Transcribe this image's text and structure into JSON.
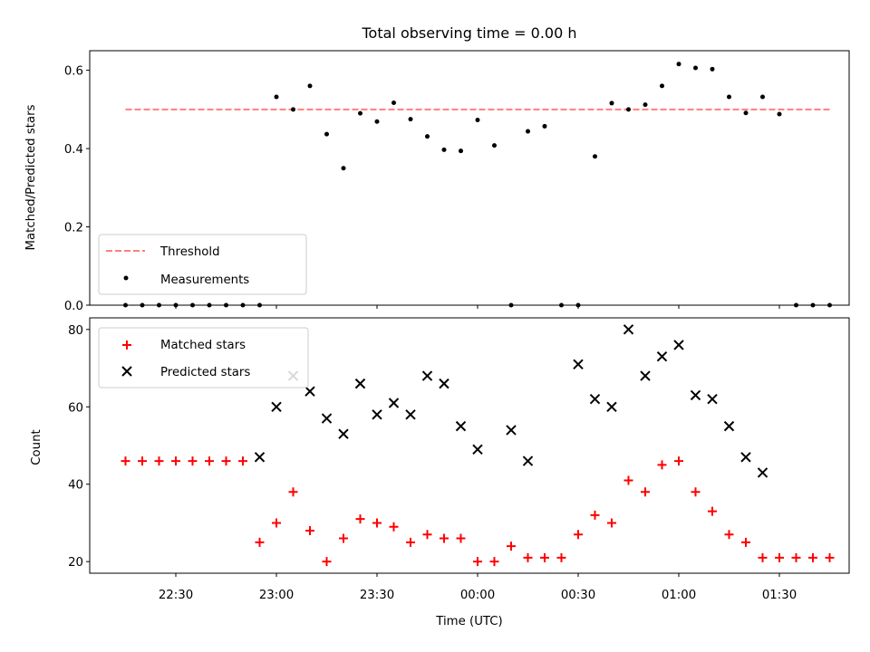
{
  "colors": {
    "threshold": "#ff7f7f",
    "measurements": "#000000",
    "matched": "#ff0000",
    "predicted": "#000000"
  },
  "chart_data": [
    {
      "type": "scatter",
      "title": "Total observing time = 0.00 h",
      "xlabel": "",
      "ylabel": "Matched/Predicted stars",
      "ylim": [
        0,
        0.65
      ],
      "yticks": [
        "0.0",
        "0.2",
        "0.4",
        "0.6"
      ],
      "legend_placement": "lower-left",
      "legend": [
        "Threshold",
        "Measurements"
      ],
      "threshold": {
        "name": "Threshold",
        "y": 0.5,
        "x_range": [
          "22:15",
          "01:45"
        ],
        "style": "dashed"
      },
      "series": [
        {
          "name": "Measurements",
          "x": [
            "22:15",
            "22:20",
            "22:25",
            "22:30",
            "22:35",
            "22:40",
            "22:45",
            "22:50",
            "22:55",
            "23:00",
            "23:05",
            "23:10",
            "23:15",
            "23:20",
            "23:25",
            "23:30",
            "23:35",
            "23:40",
            "23:45",
            "23:50",
            "23:55",
            "00:00",
            "00:05",
            "00:10",
            "00:15",
            "00:20",
            "00:25",
            "00:30",
            "00:35",
            "00:40",
            "00:45",
            "00:50",
            "00:55",
            "01:00",
            "01:05",
            "01:10",
            "01:15",
            "01:20",
            "01:25",
            "01:30",
            "01:35",
            "01:40",
            "01:45"
          ],
          "y": [
            0.0,
            0.0,
            0.0,
            0.0,
            0.0,
            0.0,
            0.0,
            0.0,
            0.0,
            0.532,
            0.5,
            0.56,
            0.437,
            0.35,
            0.49,
            0.469,
            0.517,
            0.475,
            0.431,
            0.397,
            0.394,
            0.473,
            0.408,
            0.0,
            0.444,
            0.457,
            0.0,
            0.0,
            0.38,
            0.516,
            0.5,
            0.512,
            0.56,
            0.616,
            0.606,
            0.603,
            0.532,
            0.491,
            0.532,
            0.488,
            0.0,
            0.0,
            0.0
          ]
        }
      ]
    },
    {
      "type": "scatter",
      "title": "",
      "xlabel": "Time (UTC)",
      "ylabel": "Count",
      "ylim": [
        17,
        83
      ],
      "yticks": [
        "20",
        "40",
        "60",
        "80"
      ],
      "xticks": [
        "22:30",
        "23:00",
        "23:30",
        "00:00",
        "00:30",
        "01:00",
        "01:30"
      ],
      "legend_placement": "upper-left",
      "legend": [
        "Matched stars",
        "Predicted stars"
      ],
      "series": [
        {
          "name": "Matched stars",
          "marker": "+",
          "x": [
            "22:15",
            "22:20",
            "22:25",
            "22:30",
            "22:35",
            "22:40",
            "22:45",
            "22:50",
            "22:55",
            "23:00",
            "23:05",
            "23:10",
            "23:15",
            "23:20",
            "23:25",
            "23:30",
            "23:35",
            "23:40",
            "23:45",
            "23:50",
            "23:55",
            "00:00",
            "00:05",
            "00:10",
            "00:15",
            "00:20",
            "00:25",
            "00:30",
            "00:35",
            "00:40",
            "00:45",
            "00:50",
            "00:55",
            "01:00",
            "01:05",
            "01:10",
            "01:15",
            "01:20",
            "01:25",
            "01:30",
            "01:35",
            "01:40",
            "01:45"
          ],
          "y": [
            46,
            46,
            46,
            46,
            46,
            46,
            46,
            46,
            25,
            30,
            38,
            28,
            20,
            26,
            31,
            30,
            29,
            25,
            27,
            26,
            26,
            20,
            20,
            24,
            21,
            21,
            21,
            27,
            32,
            30,
            41,
            38,
            45,
            46,
            38,
            33,
            27,
            25,
            21,
            21,
            21,
            21,
            21
          ]
        },
        {
          "name": "Predicted stars",
          "marker": "x",
          "x": [
            "22:55",
            "23:00",
            "23:05",
            "23:10",
            "23:15",
            "23:20",
            "23:25",
            "23:30",
            "23:35",
            "23:40",
            "23:45",
            "23:50",
            "23:55",
            "00:00",
            "00:10",
            "00:15",
            "00:30",
            "00:35",
            "00:40",
            "00:45",
            "00:50",
            "00:55",
            "01:00",
            "01:05",
            "01:10",
            "01:15",
            "01:20",
            "01:25"
          ],
          "y": [
            47,
            60,
            68,
            64,
            57,
            53,
            66,
            58,
            61,
            58,
            68,
            66,
            55,
            49,
            54,
            46,
            71,
            62,
            60,
            80,
            68,
            73,
            76,
            63,
            62,
            55,
            47,
            43
          ]
        }
      ]
    }
  ]
}
